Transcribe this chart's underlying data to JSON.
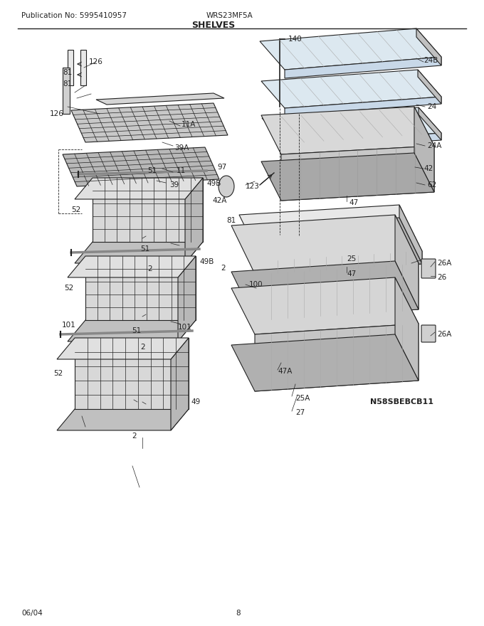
{
  "title": "SHELVES",
  "pub_no": "Publication No: 5995410957",
  "model": "WRS23MF5A",
  "date": "06/04",
  "page": "8",
  "diagram_id": "N58SBEBCB11",
  "bg_color": "#ffffff",
  "line_color": "#222222",
  "label_fontsize": 7.5,
  "title_fontsize": 9,
  "header_fontsize": 7.5
}
